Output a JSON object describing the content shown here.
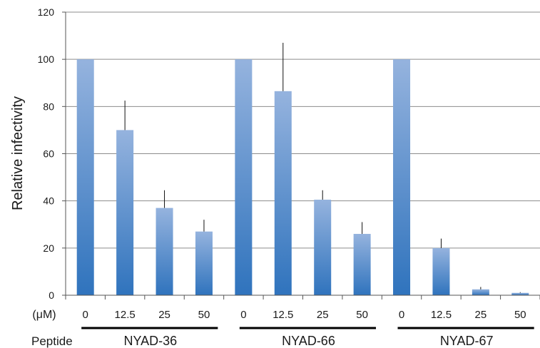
{
  "chart_data": {
    "type": "bar",
    "ylabel": "Relative infectivity",
    "ylim": [
      0,
      120
    ],
    "yticks": [
      0,
      20,
      40,
      60,
      80,
      100,
      120
    ],
    "grid": true,
    "concentration_label": "(μM)",
    "peptide_label": "Peptide",
    "categories": [
      "0",
      "12.5",
      "25",
      "50",
      "0",
      "12.5",
      "25",
      "50",
      "0",
      "12.5",
      "25",
      "50"
    ],
    "values": [
      100,
      70,
      37,
      27,
      100,
      86.5,
      40.5,
      26,
      100,
      20,
      2.5,
      1
    ],
    "error_upper": [
      0,
      12.5,
      7.5,
      5,
      0,
      20.5,
      4,
      5,
      0,
      4,
      1,
      0.3
    ],
    "groups": [
      {
        "name": "NYAD-36",
        "indices": [
          0,
          1,
          2,
          3
        ]
      },
      {
        "name": "NYAD-66",
        "indices": [
          4,
          5,
          6,
          7
        ]
      },
      {
        "name": "NYAD-67",
        "indices": [
          8,
          9,
          10,
          11
        ]
      }
    ],
    "bar_color_top": "#95b3de",
    "bar_color_bottom": "#2f73bd",
    "grid_color": "#8c8c8c"
  }
}
